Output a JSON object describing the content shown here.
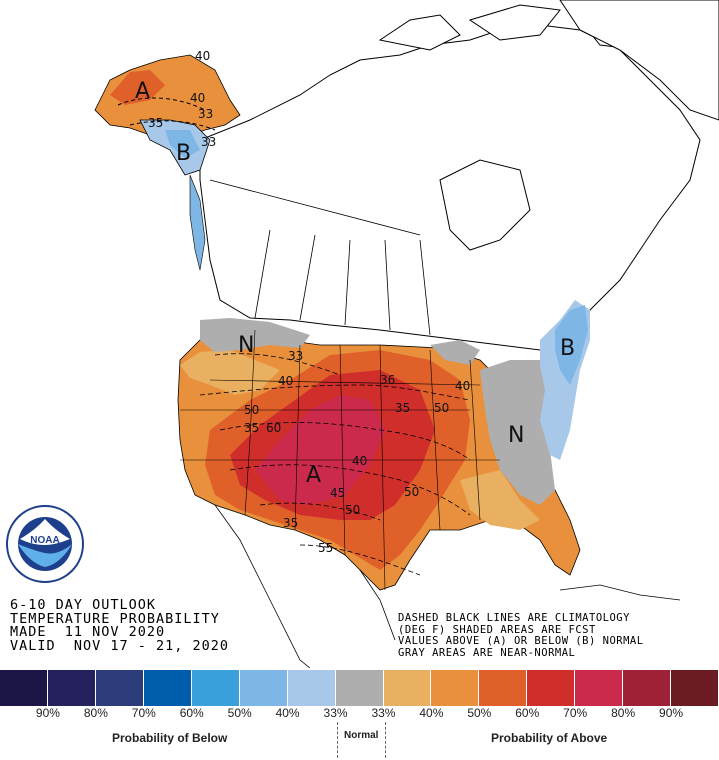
{
  "title_lines": [
    "6-10 DAY OUTLOOK",
    "TEMPERATURE PROBABILITY",
    "MADE  11 NOV 2020",
    "VALID  NOV 17 - 21, 2020"
  ],
  "notes_lines": [
    "DASHED BLACK LINES ARE CLIMATOLOGY",
    "(DEG F) SHADED AREAS ARE FCST",
    "VALUES ABOVE (A) OR BELOW (B) NORMAL",
    "GRAY AREAS ARE NEAR-NORMAL"
  ],
  "logo": {
    "text": "NOAA",
    "ring_text": "NATIONAL OCEANIC AND ATMOSPHERIC ADMINISTRATION · U.S. DEPARTMENT OF COMMERCE"
  },
  "map_labels": {
    "A_west": "A",
    "A_alaska": "A",
    "B_alaska": "B",
    "B_east": "B",
    "N_north": "N",
    "N_east": "N"
  },
  "contour_labels": [
    "40",
    "40",
    "33",
    "35",
    "33",
    "40",
    "36",
    "35",
    "40",
    "50",
    "35",
    "60",
    "40",
    "50",
    "45",
    "50",
    "50",
    "55",
    "35",
    "33"
  ],
  "legend": {
    "colors": [
      "#1c1548",
      "#25205e",
      "#2d3d7b",
      "#005dab",
      "#3aa0dc",
      "#7eb6e6",
      "#a8c8ea",
      "#aeaeae",
      "#e8b060",
      "#e9903c",
      "#e0602a",
      "#cf2e2a",
      "#cc2a4c",
      "#9e2236",
      "#6b1c22"
    ],
    "ticks": [
      "90%",
      "80%",
      "70%",
      "60%",
      "50%",
      "40%",
      "33%",
      "33%",
      "40%",
      "50%",
      "60%",
      "70%",
      "80%",
      "90%"
    ],
    "below_caption": "Probability of Below",
    "normal_caption": "Normal",
    "above_caption": "Probability of Above"
  }
}
